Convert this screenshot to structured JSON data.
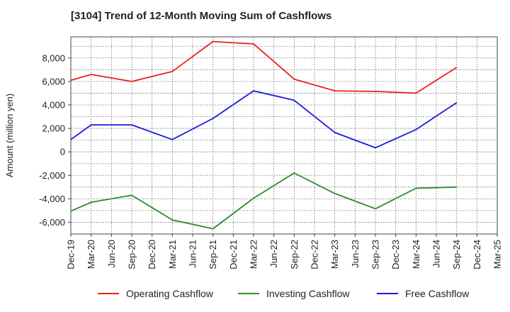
{
  "chart_data": {
    "type": "line",
    "title": "[3104]  Trend of 12-Month Moving Sum of Cashflows",
    "xlabel": "",
    "ylabel": "Amount (million yen)",
    "ylim": [
      -7000,
      9800
    ],
    "yticks": [
      -6000,
      -4000,
      -2000,
      0,
      2000,
      4000,
      6000,
      8000
    ],
    "ytick_labels": [
      "-6,000",
      "-4,000",
      "-2,000",
      "0",
      "2,000",
      "4,000",
      "6,000",
      "8,000"
    ],
    "categories": [
      "Dec-19",
      "Mar-20",
      "Jun-20",
      "Sep-20",
      "Dec-20",
      "Mar-21",
      "Jun-21",
      "Sep-21",
      "Dec-21",
      "Mar-22",
      "Jun-22",
      "Sep-22",
      "Dec-22",
      "Mar-23",
      "Jun-23",
      "Sep-23",
      "Dec-23",
      "Mar-24",
      "Jun-24",
      "Sep-24",
      "Dec-24",
      "Mar-25"
    ],
    "grid": true,
    "legend_position": "bottom",
    "series": [
      {
        "name": "Operating Cashflow",
        "color": "#e8201e",
        "points": [
          [
            "Dec-19",
            6100
          ],
          [
            "Mar-20",
            6600
          ],
          [
            "Sep-20",
            6000
          ],
          [
            "Mar-21",
            6850
          ],
          [
            "Sep-21",
            9400
          ],
          [
            "Mar-22",
            9200
          ],
          [
            "Sep-22",
            6200
          ],
          [
            "Mar-23",
            5200
          ],
          [
            "Sep-23",
            5150
          ],
          [
            "Mar-24",
            5000
          ],
          [
            "Sep-24",
            7200
          ]
        ]
      },
      {
        "name": "Investing Cashflow",
        "color": "#2e8b2e",
        "points": [
          [
            "Dec-19",
            -5050
          ],
          [
            "Mar-20",
            -4300
          ],
          [
            "Sep-20",
            -3700
          ],
          [
            "Mar-21",
            -5800
          ],
          [
            "Sep-21",
            -6550
          ],
          [
            "Mar-22",
            -3950
          ],
          [
            "Sep-22",
            -1800
          ],
          [
            "Mar-23",
            -3550
          ],
          [
            "Sep-23",
            -4850
          ],
          [
            "Mar-24",
            -3100
          ],
          [
            "Sep-24",
            -3000
          ]
        ]
      },
      {
        "name": "Free Cashflow",
        "color": "#1a1adc",
        "points": [
          [
            "Dec-19",
            1050
          ],
          [
            "Mar-20",
            2300
          ],
          [
            "Sep-20",
            2300
          ],
          [
            "Mar-21",
            1050
          ],
          [
            "Sep-21",
            2850
          ],
          [
            "Mar-22",
            5200
          ],
          [
            "Sep-22",
            4400
          ],
          [
            "Mar-23",
            1650
          ],
          [
            "Sep-23",
            350
          ],
          [
            "Mar-24",
            1900
          ],
          [
            "Sep-24",
            4200
          ]
        ]
      }
    ]
  }
}
